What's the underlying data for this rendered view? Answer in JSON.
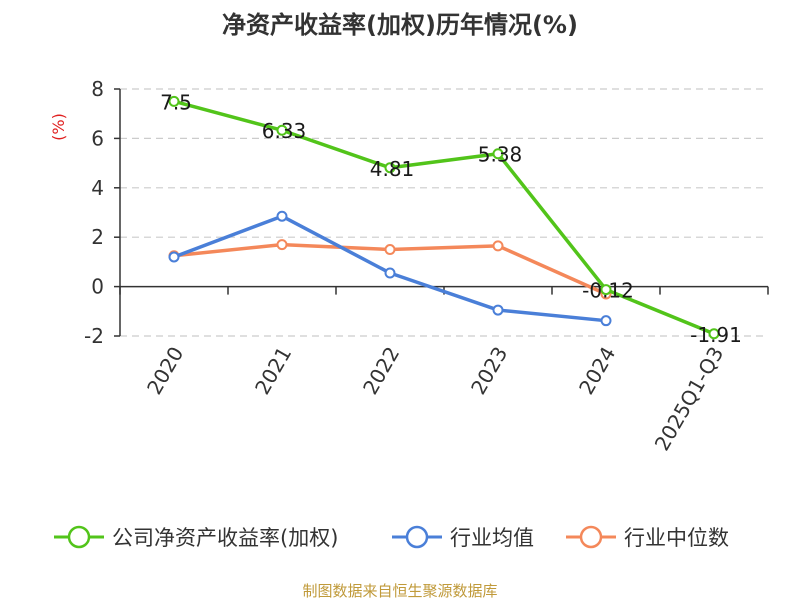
{
  "chart_data": {
    "type": "line",
    "title": "净资产收益率(加权)历年情况(%)",
    "ylabel": "(%)",
    "categories": [
      "2020",
      "2021",
      "2022",
      "2023",
      "2024",
      "2025Q1-Q3"
    ],
    "ylim": [
      -2,
      8
    ],
    "yticks": [
      -2,
      0,
      2,
      4,
      6,
      8
    ],
    "grid": true,
    "legend_position": "bottom",
    "series": [
      {
        "name": "公司净资产收益率(加权)",
        "color": "#52c41a",
        "values": [
          7.5,
          6.33,
          4.81,
          5.38,
          -0.12,
          -1.91
        ],
        "labels": [
          "7.5",
          "6.33",
          "4.81",
          "5.38",
          "-0.12",
          "-1.91"
        ]
      },
      {
        "name": "行业均值",
        "color": "#4a7fd8",
        "values": [
          1.2,
          2.85,
          0.55,
          -0.95,
          -1.38,
          null
        ],
        "labels": []
      },
      {
        "name": "行业中位数",
        "color": "#f4885a",
        "values": [
          1.25,
          1.7,
          1.5,
          1.65,
          -0.3,
          null
        ],
        "labels": []
      }
    ]
  },
  "footer": {
    "source": "制图数据来自恒生聚源数据库",
    "source_color": "#c09a3a"
  },
  "colors": {
    "unit_label": "#e02020",
    "axis": "#333333",
    "grid": "#cccccc"
  }
}
